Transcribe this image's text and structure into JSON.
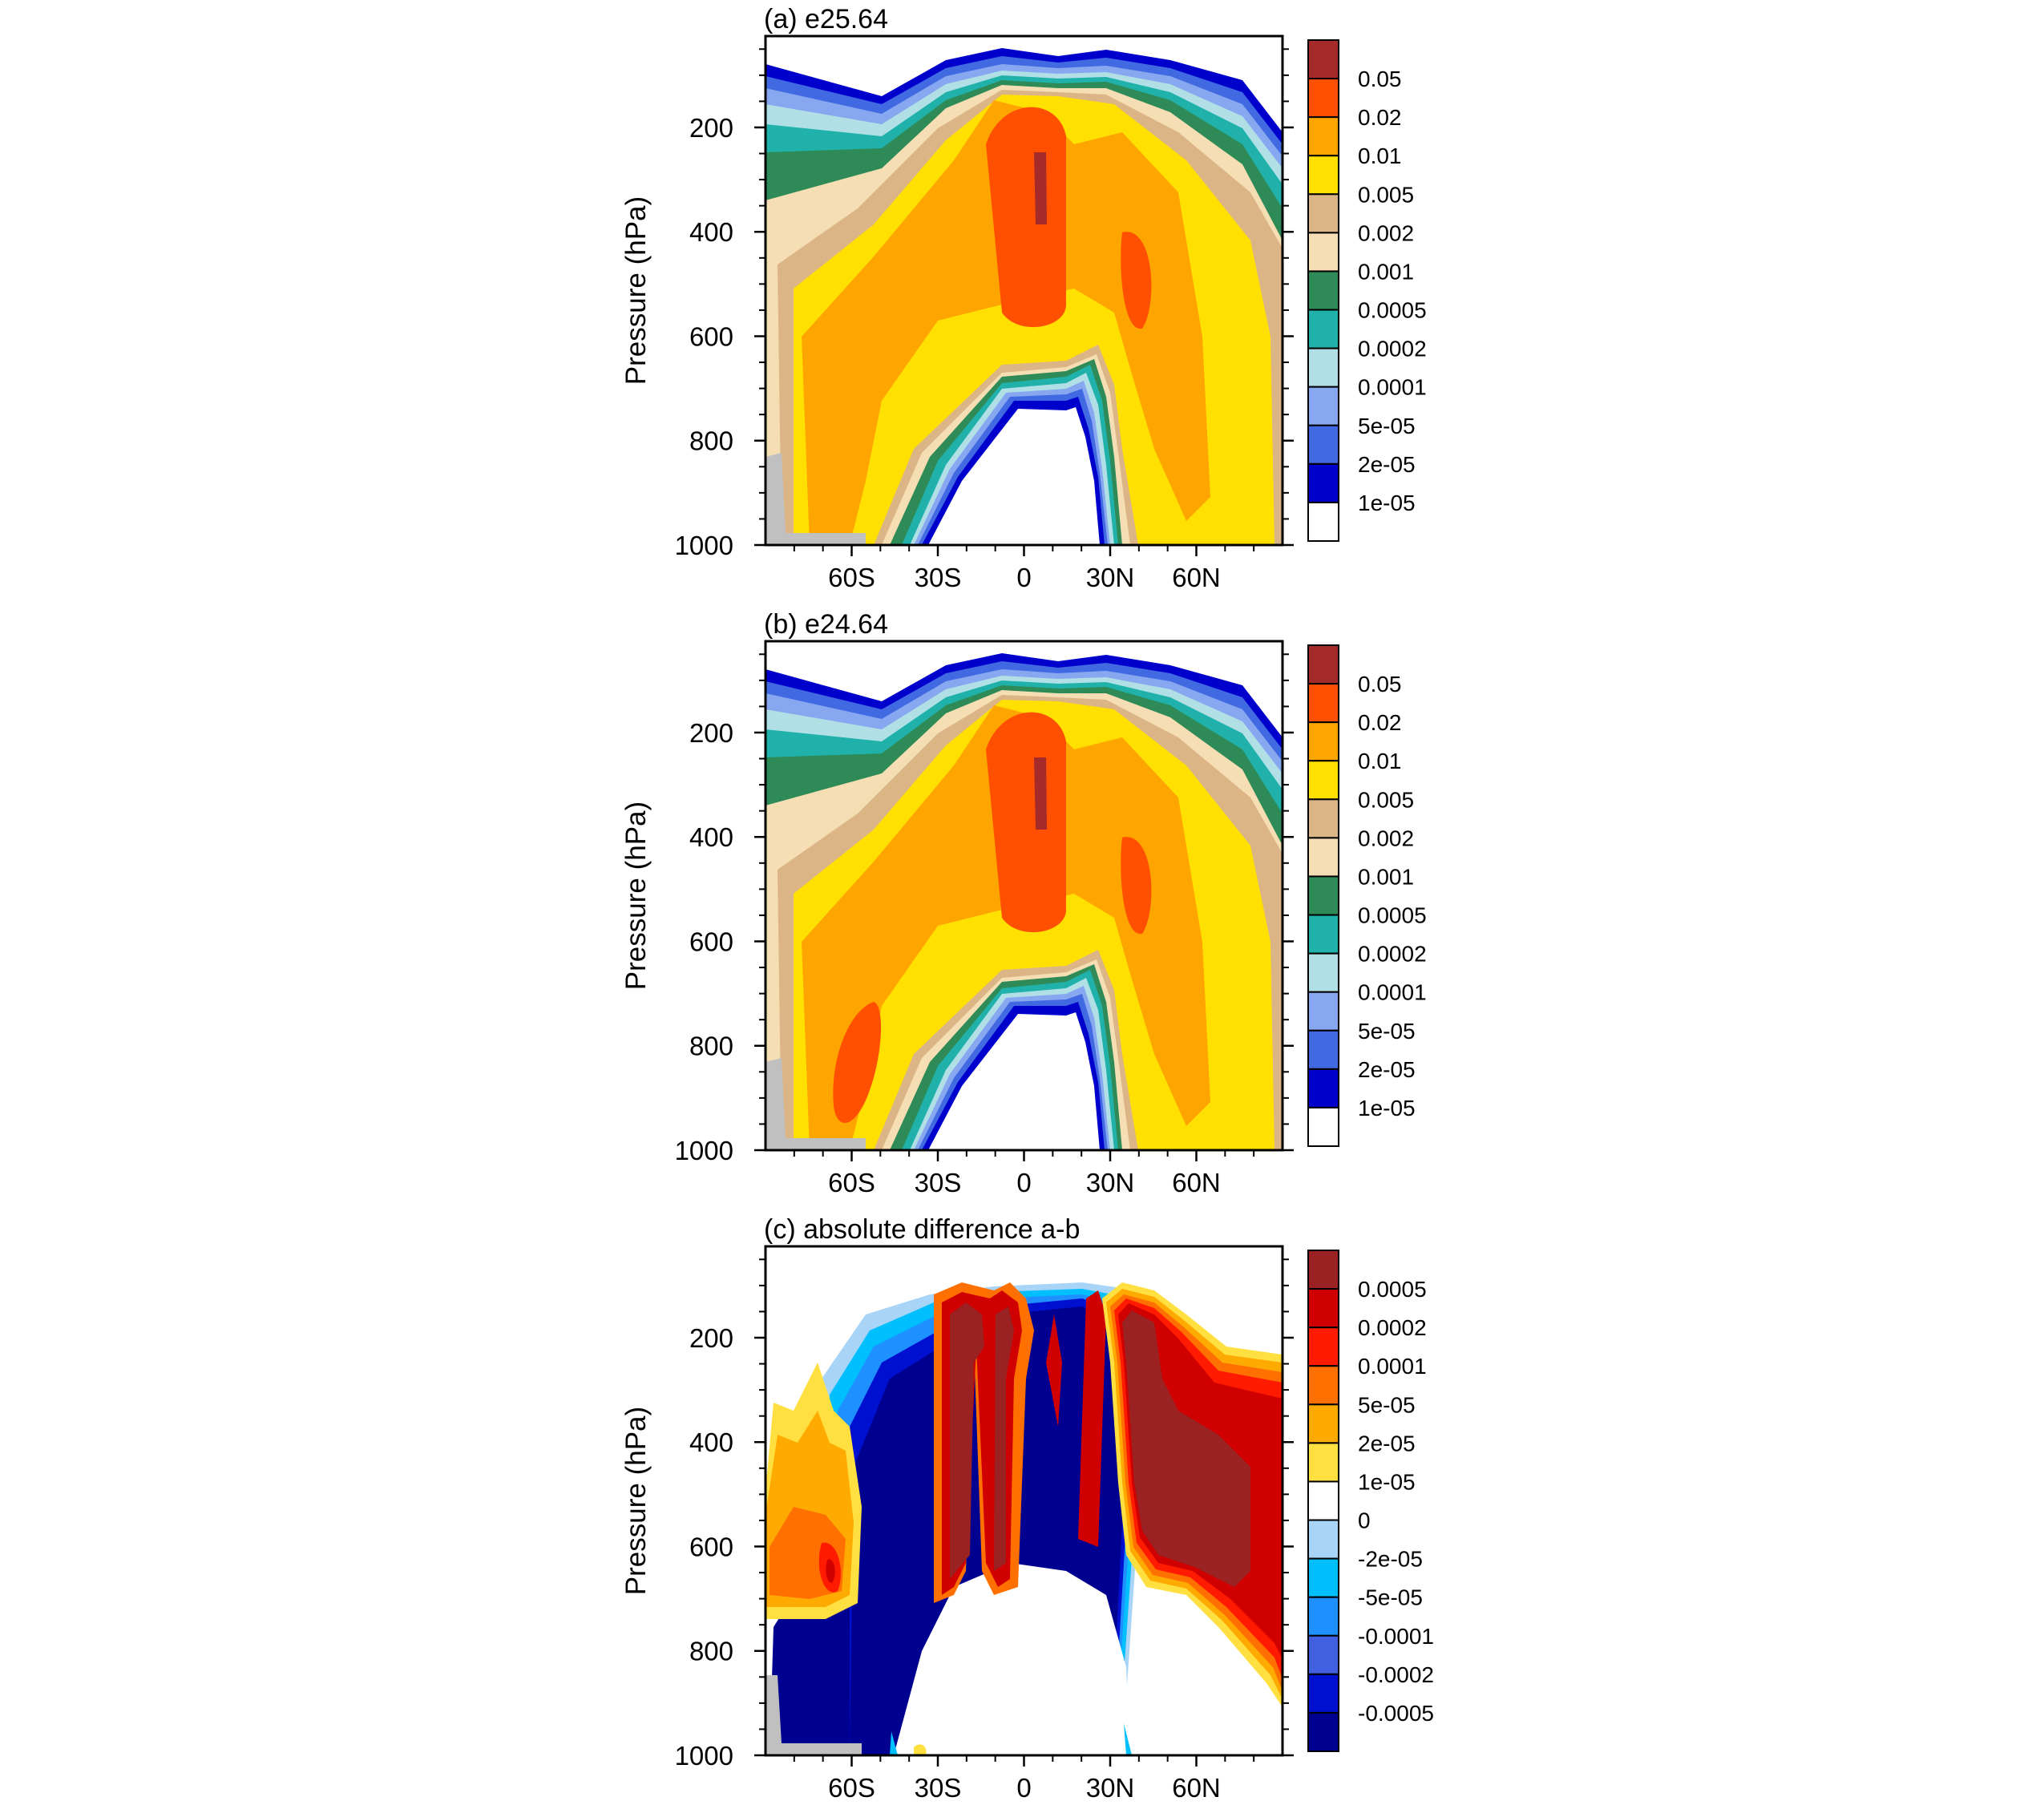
{
  "chart_data": [
    {
      "type": "heatmap",
      "title": "(a) e25.64",
      "ylabel": "Pressure (hPa)",
      "xlabel": "",
      "x_ticks": [
        "60S",
        "30S",
        "0",
        "30N",
        "60N"
      ],
      "x_tick_values": [
        -60,
        -30,
        0,
        30,
        60
      ],
      "y_ticks": [
        "200",
        "400",
        "600",
        "800",
        "1000"
      ],
      "y_tick_values": [
        200,
        400,
        600,
        800,
        1000
      ],
      "xlim": [
        -90,
        90
      ],
      "ylim": [
        1000,
        25
      ],
      "colorbar": {
        "labels": [
          "0.05",
          "0.02",
          "0.01",
          "0.005",
          "0.002",
          "0.001",
          "0.0005",
          "0.0002",
          "0.0001",
          "5e-05",
          "2e-05",
          "1e-05"
        ],
        "colors": [
          "#a52a2a",
          "#ff4f00",
          "#ffa500",
          "#ffe000",
          "#dcb587",
          "#f5deb3",
          "#2e8b57",
          "#20b2aa",
          "#b0e0e6",
          "#87a8f0",
          "#4169e1",
          "#0000cd",
          "#ffffff"
        ]
      }
    },
    {
      "type": "heatmap",
      "title": "(b) e24.64",
      "ylabel": "Pressure (hPa)",
      "xlabel": "",
      "x_ticks": [
        "60S",
        "30S",
        "0",
        "30N",
        "60N"
      ],
      "x_tick_values": [
        -60,
        -30,
        0,
        30,
        60
      ],
      "y_ticks": [
        "200",
        "400",
        "600",
        "800",
        "1000"
      ],
      "y_tick_values": [
        200,
        400,
        600,
        800,
        1000
      ],
      "xlim": [
        -90,
        90
      ],
      "ylim": [
        1000,
        25
      ],
      "colorbar": {
        "labels": [
          "0.05",
          "0.02",
          "0.01",
          "0.005",
          "0.002",
          "0.001",
          "0.0005",
          "0.0002",
          "0.0001",
          "5e-05",
          "2e-05",
          "1e-05"
        ],
        "colors": [
          "#a52a2a",
          "#ff4f00",
          "#ffa500",
          "#ffe000",
          "#dcb587",
          "#f5deb3",
          "#2e8b57",
          "#20b2aa",
          "#b0e0e6",
          "#87a8f0",
          "#4169e1",
          "#0000cd",
          "#ffffff"
        ]
      }
    },
    {
      "type": "heatmap",
      "title": "(c) absolute difference a-b",
      "ylabel": "Pressure (hPa)",
      "xlabel": "",
      "x_ticks": [
        "60S",
        "30S",
        "0",
        "30N",
        "60N"
      ],
      "x_tick_values": [
        -60,
        -30,
        0,
        30,
        60
      ],
      "y_ticks": [
        "200",
        "400",
        "600",
        "800",
        "1000"
      ],
      "y_tick_values": [
        200,
        400,
        600,
        800,
        1000
      ],
      "xlim": [
        -90,
        90
      ],
      "ylim": [
        1000,
        25
      ],
      "colorbar": {
        "labels": [
          "0.0005",
          "0.0002",
          "0.0001",
          "5e-05",
          "2e-05",
          "1e-05",
          "0",
          "-2e-05",
          "-5e-05",
          "-0.0001",
          "-0.0002",
          "-0.0005"
        ],
        "colors": [
          "#9b2222",
          "#d00000",
          "#ff1a00",
          "#ff7000",
          "#ffaa00",
          "#ffe040",
          "#ffffff",
          "#a8d4f8",
          "#00bfff",
          "#1e90ff",
          "#4060e0",
          "#0010d0",
          "#000090"
        ]
      }
    }
  ]
}
